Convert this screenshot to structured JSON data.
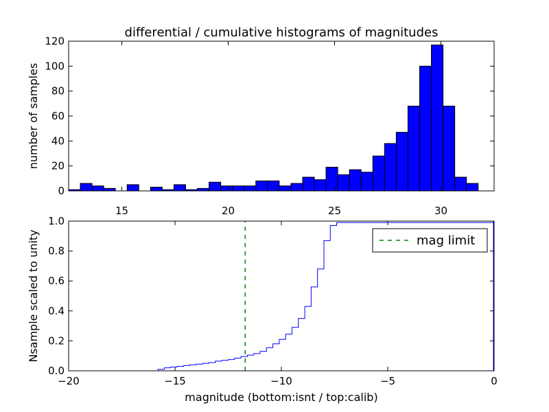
{
  "chart_data": [
    {
      "type": "bar",
      "title": "differential / cumulative histograms of magnitudes",
      "ylabel": "number of samples",
      "xlim": [
        12.5,
        32.5
      ],
      "ylim": [
        0,
        120
      ],
      "xticks": [
        15,
        20,
        25,
        30
      ],
      "yticks": [
        0,
        20,
        40,
        60,
        80,
        100,
        120
      ],
      "x_tick_position": "bottom of top panel (shared with lower panel's top axis)",
      "bar_color": "#0000ff",
      "edge_color": "#000000",
      "bin_start": 12.5,
      "bin_width": 0.55,
      "counts": [
        1,
        6,
        4,
        2,
        0,
        5,
        0,
        3,
        1,
        5,
        1,
        2,
        7,
        4,
        4,
        4,
        8,
        8,
        4,
        6,
        11,
        9,
        19,
        13,
        17,
        15,
        28,
        38,
        47,
        68,
        100,
        117,
        68,
        11,
        6
      ]
    },
    {
      "type": "line",
      "xlabel": "magnitude (bottom:isnt / top:calib)",
      "ylabel": "Nsample scaled to unity",
      "xlim": [
        -20,
        0
      ],
      "ylim": [
        0,
        1.0
      ],
      "xticks": [
        -20,
        -15,
        -10,
        -5,
        0
      ],
      "yticks": [
        0.0,
        0.2,
        0.4,
        0.6,
        0.8,
        1.0
      ],
      "legend_position": "top-right",
      "series": [
        {
          "name": "",
          "style": "step",
          "color": "#0000ff",
          "x": [
            -20,
            -15.8,
            -15.5,
            -15.2,
            -14.9,
            -14.6,
            -14.3,
            -14.0,
            -13.7,
            -13.4,
            -13.1,
            -12.8,
            -12.5,
            -12.2,
            -11.9,
            -11.6,
            -11.3,
            -11.0,
            -10.7,
            -10.4,
            -10.1,
            -9.8,
            -9.5,
            -9.2,
            -8.9,
            -8.6,
            -8.3,
            -8.0,
            -7.7,
            -7.4
          ],
          "y": [
            0.0,
            0.01,
            0.02,
            0.025,
            0.03,
            0.035,
            0.04,
            0.045,
            0.05,
            0.055,
            0.065,
            0.07,
            0.075,
            0.085,
            0.095,
            0.105,
            0.115,
            0.13,
            0.155,
            0.18,
            0.21,
            0.245,
            0.29,
            0.35,
            0.43,
            0.56,
            0.68,
            0.87,
            0.97,
            0.99
          ]
        },
        {
          "name": "mag limit",
          "style": "dashed-vertical",
          "color": "#008000",
          "x": [
            -11.7,
            -11.7
          ],
          "y": [
            0,
            1.0
          ]
        }
      ]
    }
  ]
}
